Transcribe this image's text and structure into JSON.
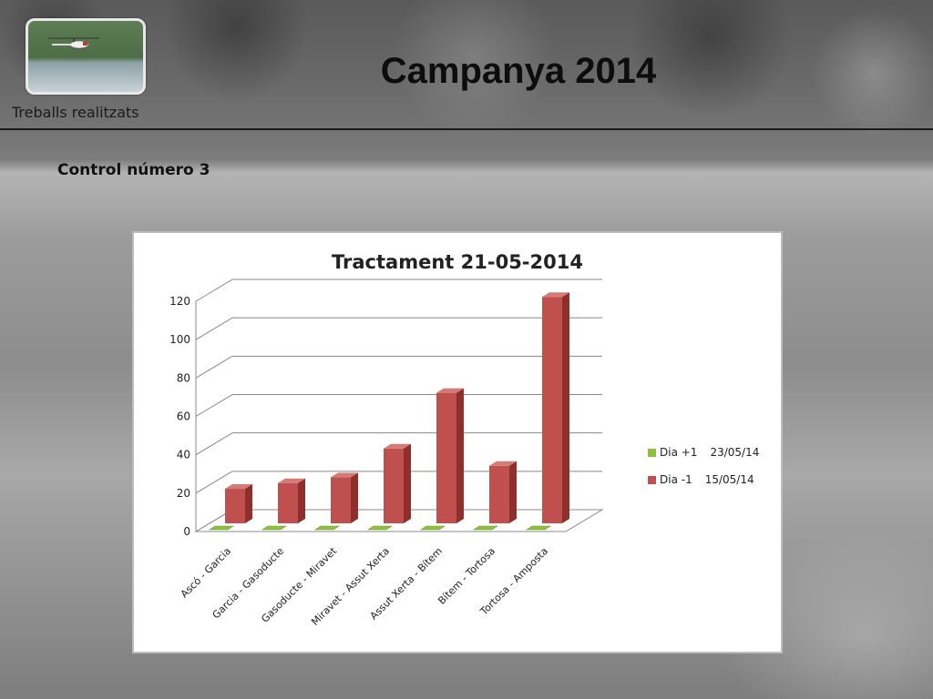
{
  "header": {
    "title": "Campanya 2014",
    "subtitle": "Treballs realitzats",
    "section": "Control número 3"
  },
  "chart_data": {
    "type": "bar",
    "title": "Tractament 21-05-2014",
    "categories": [
      "Ascó - Garcia",
      "Garcia - Gasoducte",
      "Gasoducte - Miravet",
      "Miravet - Assut Xerta",
      "Assut Xerta - Bítem",
      "Bítem - Tortosa",
      "Tortosa - Amposta"
    ],
    "series": [
      {
        "name": "Dia +1",
        "date": "23/05/14",
        "color": "#8fbf3f",
        "values": [
          0,
          0,
          0,
          0,
          0,
          0,
          0
        ]
      },
      {
        "name": "Dia -1",
        "date": "15/05/14",
        "color": "#c0504d",
        "values": [
          18,
          21,
          24,
          39,
          68,
          30,
          118
        ]
      }
    ],
    "yticks": [
      0,
      20,
      40,
      60,
      80,
      100,
      120
    ],
    "ylim": [
      0,
      120
    ],
    "grid": true,
    "legend_position": "right"
  }
}
